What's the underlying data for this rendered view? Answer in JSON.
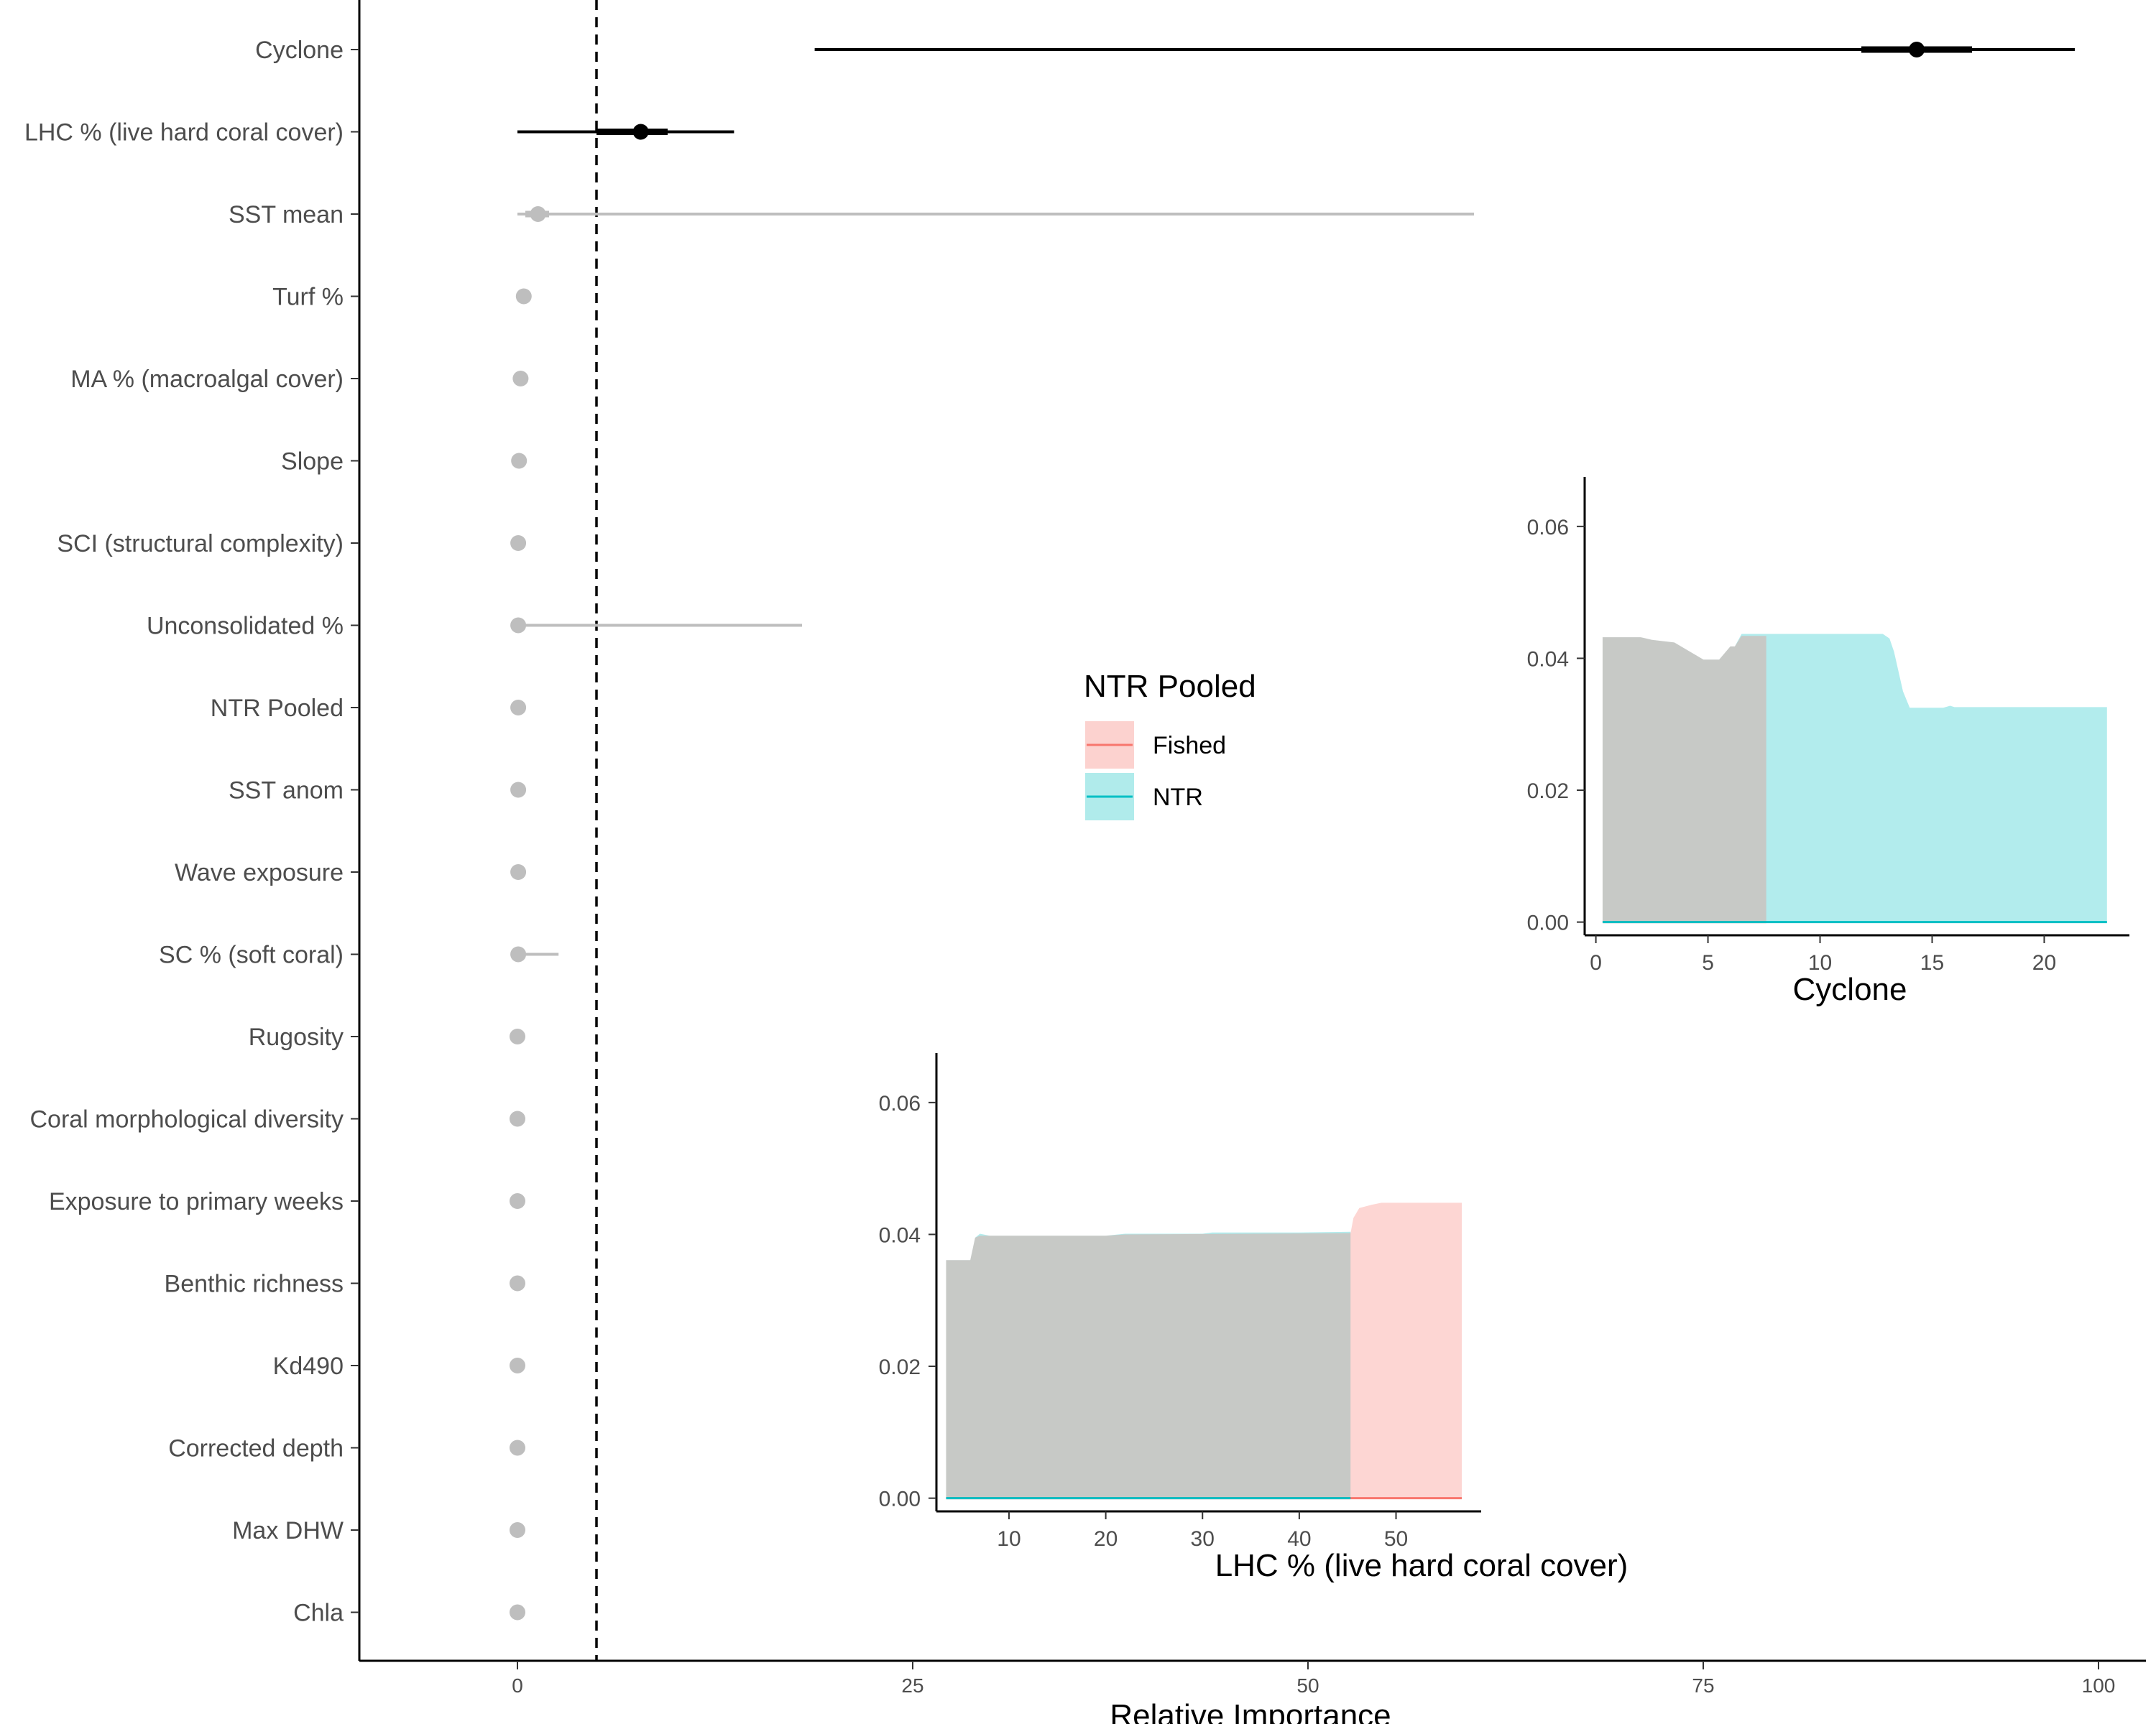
{
  "chart_data": [
    {
      "type": "scatter",
      "subtype": "point-range",
      "xlabel": "Relative Importance",
      "xlim": [
        -10,
        103
      ],
      "xticks": [
        0,
        25,
        50,
        75,
        100
      ],
      "threshold_line": 5,
      "variables": [
        {
          "name": "Cyclone",
          "median": 88.5,
          "inner": [
            85,
            92
          ],
          "outer": [
            18.8,
            98.5
          ],
          "highlight": true
        },
        {
          "name": "LHC % (live hard coral cover)",
          "median": 7.8,
          "inner": [
            5,
            9.5
          ],
          "outer": [
            0,
            13.7
          ],
          "highlight": true
        },
        {
          "name": "SST mean",
          "median": 1.3,
          "inner": [
            0.5,
            2
          ],
          "outer": [
            0,
            60.5
          ],
          "highlight": false
        },
        {
          "name": "Turf %",
          "median": 0.4,
          "inner": null,
          "outer": null,
          "highlight": false
        },
        {
          "name": "MA % (macroalgal cover)",
          "median": 0.2,
          "inner": null,
          "outer": null,
          "highlight": false
        },
        {
          "name": "Slope",
          "median": 0.1,
          "inner": null,
          "outer": null,
          "highlight": false
        },
        {
          "name": "SCI (structural complexity)",
          "median": 0.05,
          "inner": null,
          "outer": null,
          "highlight": false
        },
        {
          "name": "Unconsolidated %",
          "median": 0.05,
          "inner": null,
          "outer": [
            0,
            18
          ],
          "highlight": false
        },
        {
          "name": "NTR Pooled",
          "median": 0.05,
          "inner": null,
          "outer": null,
          "highlight": false
        },
        {
          "name": "SST anom",
          "median": 0.05,
          "inner": null,
          "outer": null,
          "highlight": false
        },
        {
          "name": "Wave exposure",
          "median": 0.05,
          "inner": null,
          "outer": null,
          "highlight": false
        },
        {
          "name": "SC % (soft coral)",
          "median": 0.05,
          "inner": null,
          "outer": [
            0,
            2.6
          ],
          "highlight": false
        },
        {
          "name": "Rugosity",
          "median": 0.0,
          "inner": null,
          "outer": null,
          "highlight": false
        },
        {
          "name": "Coral morphological diversity",
          "median": 0.0,
          "inner": null,
          "outer": null,
          "highlight": false
        },
        {
          "name": "Exposure to primary weeks",
          "median": 0.0,
          "inner": null,
          "outer": null,
          "highlight": false
        },
        {
          "name": "Benthic richness",
          "median": 0.0,
          "inner": null,
          "outer": null,
          "highlight": false
        },
        {
          "name": "Kd490",
          "median": 0.0,
          "inner": null,
          "outer": null,
          "highlight": false
        },
        {
          "name": "Corrected depth",
          "median": 0.0,
          "inner": null,
          "outer": null,
          "highlight": false
        },
        {
          "name": "Max DHW",
          "median": 0.0,
          "inner": null,
          "outer": null,
          "highlight": false
        },
        {
          "name": "Chla",
          "median": 0.0,
          "inner": null,
          "outer": null,
          "highlight": false
        }
      ]
    },
    {
      "type": "area",
      "xlabel": "Cyclone",
      "xlim": [
        -0.5,
        23.8
      ],
      "ylim": [
        -0.002,
        0.0675
      ],
      "xticks": [
        0,
        5,
        10,
        15,
        20
      ],
      "yticks": [
        "0.00",
        "0.02",
        "0.04",
        "0.06"
      ],
      "series": [
        {
          "name": "NTR",
          "points": [
            [
              0.3,
              0.0432
            ],
            [
              2.0,
              0.0432
            ],
            [
              2.5,
              0.0428
            ],
            [
              3.5,
              0.0424
            ],
            [
              4.2,
              0.041
            ],
            [
              4.8,
              0.0398
            ],
            [
              5.5,
              0.0398
            ],
            [
              6.0,
              0.0418
            ],
            [
              6.2,
              0.0418
            ],
            [
              6.5,
              0.0437
            ],
            [
              8.0,
              0.0437
            ],
            [
              12.0,
              0.0437
            ],
            [
              12.8,
              0.0437
            ],
            [
              13.1,
              0.043
            ],
            [
              13.3,
              0.041
            ],
            [
              13.7,
              0.035
            ],
            [
              14.0,
              0.0325
            ],
            [
              15.5,
              0.0325
            ],
            [
              15.8,
              0.0328
            ],
            [
              16.0,
              0.0326
            ],
            [
              22.8,
              0.0326
            ]
          ]
        },
        {
          "name": "Fished",
          "points": [
            [
              0.3,
              0.0432
            ],
            [
              2.0,
              0.0432
            ],
            [
              2.5,
              0.0428
            ],
            [
              3.5,
              0.0424
            ],
            [
              4.2,
              0.041
            ],
            [
              4.8,
              0.0398
            ],
            [
              5.5,
              0.0398
            ],
            [
              6.0,
              0.0418
            ],
            [
              6.2,
              0.0418
            ],
            [
              6.5,
              0.0434
            ],
            [
              7.6,
              0.0434
            ]
          ]
        }
      ]
    },
    {
      "type": "area",
      "xlabel": "LHC % (live hard coral cover)",
      "xlim": [
        2.5,
        58.8
      ],
      "ylim": [
        -0.002,
        0.0675
      ],
      "xticks": [
        10,
        20,
        30,
        40,
        50
      ],
      "yticks": [
        "0.00",
        "0.02",
        "0.04",
        "0.06"
      ],
      "series": [
        {
          "name": "NTR",
          "points": [
            [
              3.5,
              0.0361
            ],
            [
              6.0,
              0.0361
            ],
            [
              6.5,
              0.0395
            ],
            [
              7.0,
              0.0401
            ],
            [
              8.0,
              0.0398
            ],
            [
              20.0,
              0.0398
            ],
            [
              22.0,
              0.0401
            ],
            [
              30.0,
              0.0401
            ],
            [
              31.0,
              0.0403
            ],
            [
              40.0,
              0.0403
            ],
            [
              45.3,
              0.0404
            ]
          ]
        },
        {
          "name": "Fished",
          "points": [
            [
              3.5,
              0.0361
            ],
            [
              6.0,
              0.0361
            ],
            [
              6.5,
              0.0395
            ],
            [
              7.0,
              0.0398
            ],
            [
              20.0,
              0.0398
            ],
            [
              22.0,
              0.04
            ],
            [
              45.3,
              0.0402
            ],
            [
              45.6,
              0.0425
            ],
            [
              46.2,
              0.044
            ],
            [
              47.5,
              0.0445
            ],
            [
              48.5,
              0.0448
            ],
            [
              56.8,
              0.0448
            ]
          ]
        }
      ]
    }
  ],
  "legend": {
    "title": "NTR Pooled",
    "items": [
      {
        "label": "Fished",
        "line": "#F8766D",
        "fill": "#FCD2CF"
      },
      {
        "label": "NTR",
        "line": "#00BFC4",
        "fill": "#B0EBEB"
      }
    ]
  },
  "colors": {
    "highlight": "#000000",
    "muted": "#BEBEBE",
    "overlap_fill": "#B0CBCA"
  }
}
